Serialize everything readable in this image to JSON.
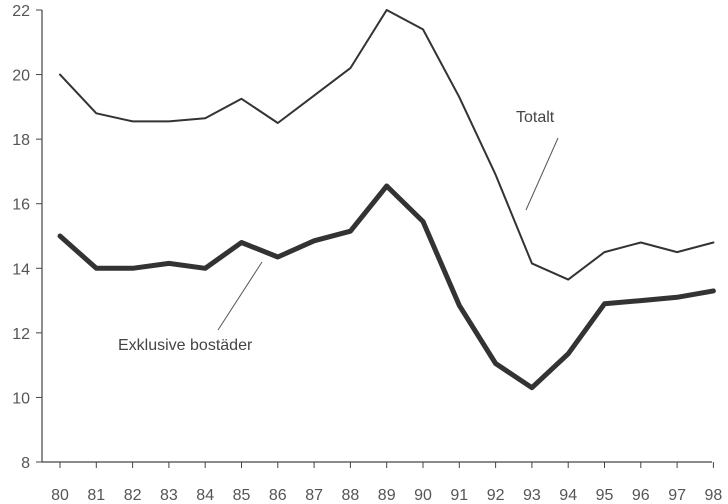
{
  "chart_data": {
    "type": "line",
    "x": [
      "80",
      "81",
      "82",
      "83",
      "84",
      "85",
      "86",
      "87",
      "88",
      "89",
      "90",
      "91",
      "92",
      "93",
      "94",
      "95",
      "96",
      "97",
      "98"
    ],
    "ylim": [
      8,
      22
    ],
    "yticks": [
      8,
      10,
      12,
      14,
      16,
      18,
      20,
      22
    ],
    "grid": false,
    "series": [
      {
        "name": "Totalt",
        "values": [
          20.0,
          18.8,
          18.55,
          18.55,
          18.65,
          19.25,
          18.5,
          19.35,
          20.2,
          22.0,
          21.4,
          19.3,
          16.9,
          14.15,
          13.65,
          14.5,
          14.8,
          14.5,
          14.8
        ],
        "color": "#333333"
      },
      {
        "name": "Exklusive bostäder",
        "values": [
          15.0,
          14.0,
          14.0,
          14.15,
          14.0,
          14.8,
          14.35,
          14.85,
          15.15,
          16.55,
          15.45,
          12.85,
          11.05,
          10.3,
          11.35,
          12.9,
          13.0,
          13.1,
          13.3
        ],
        "color": "#333333"
      }
    ]
  }
}
